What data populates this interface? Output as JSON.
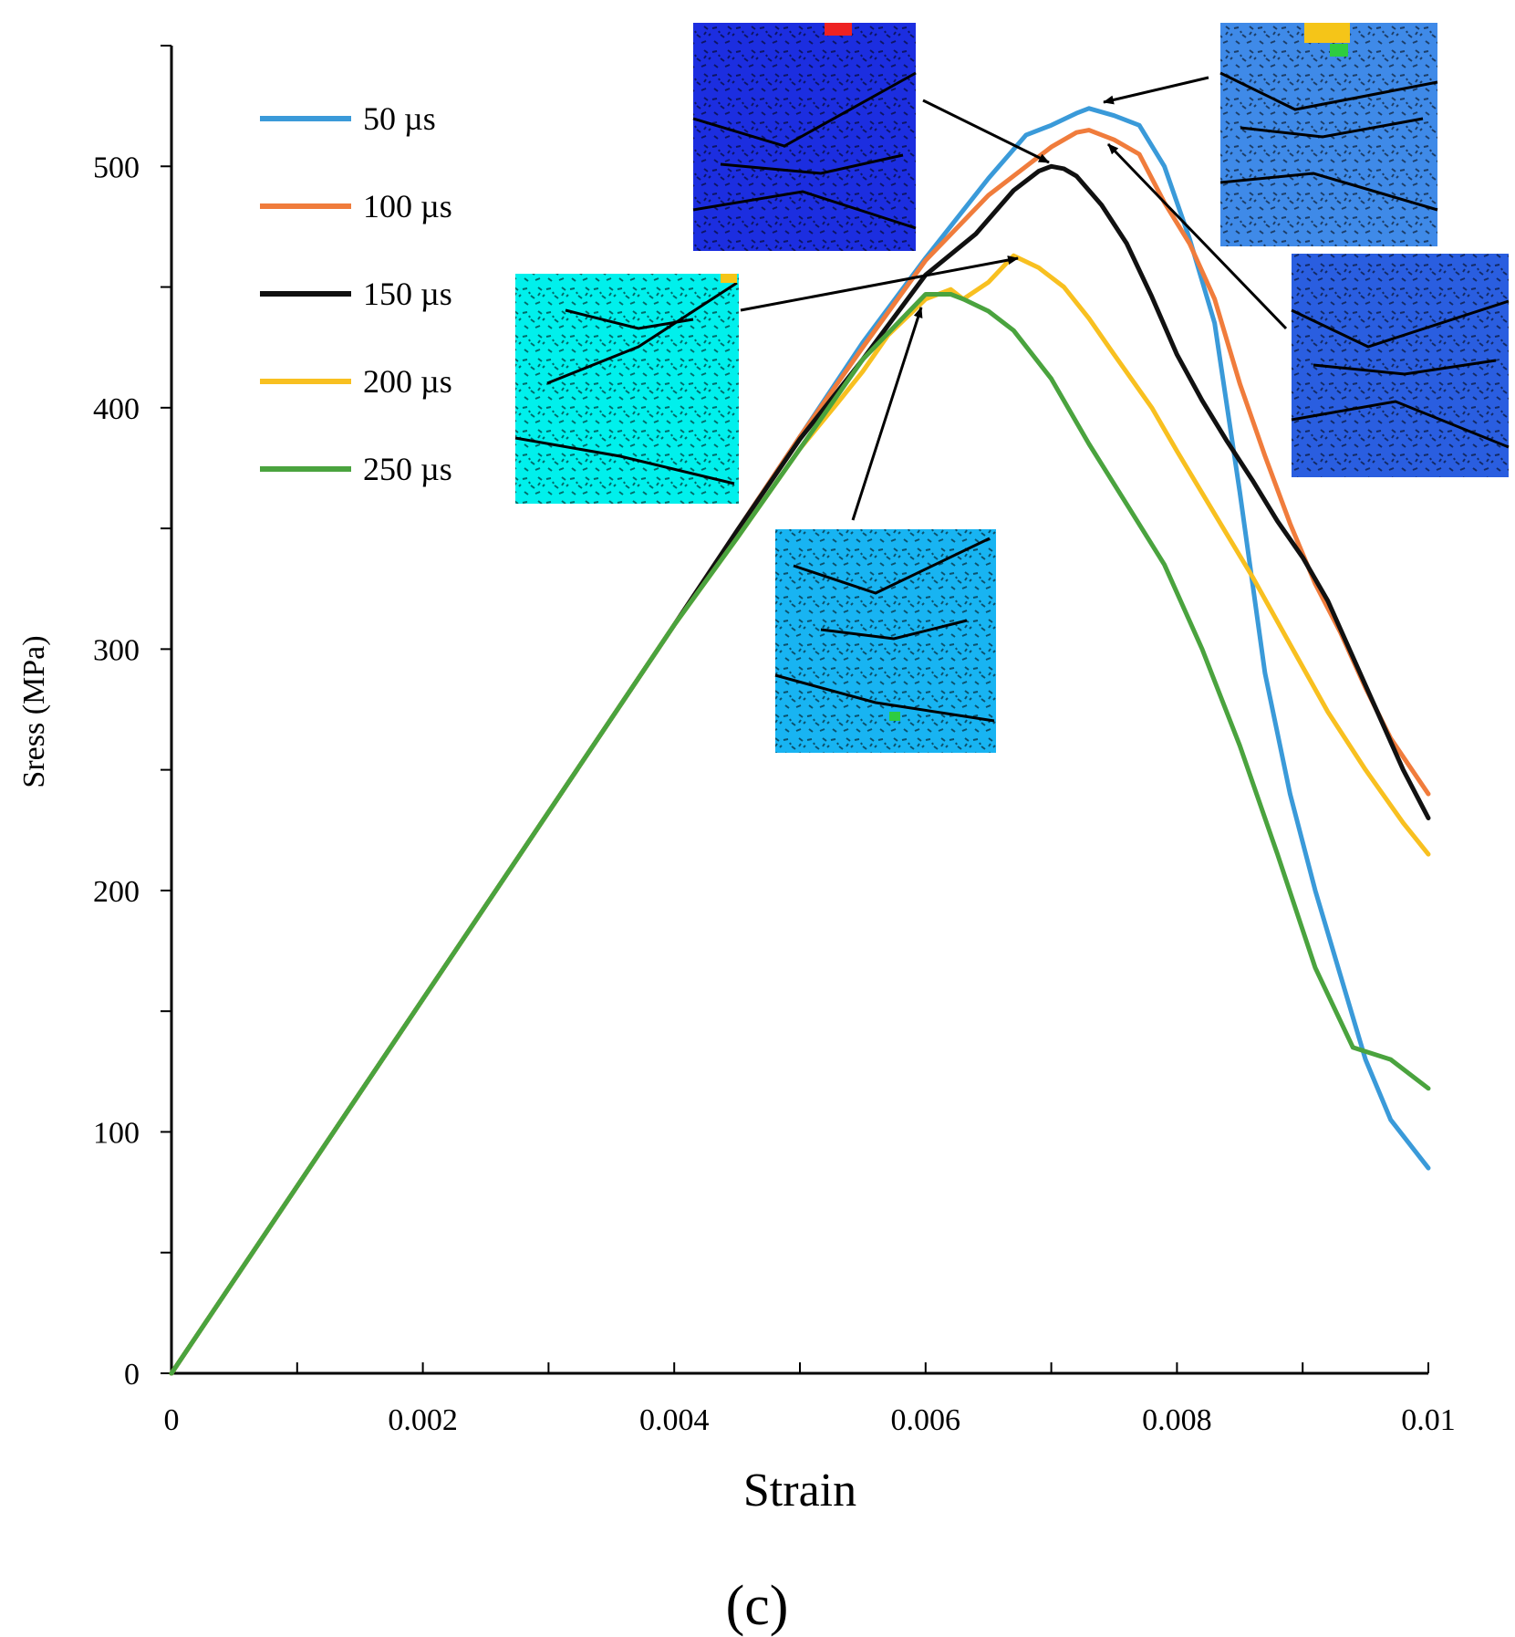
{
  "chart_data": {
    "type": "line",
    "title": "",
    "xlabel": "Strain",
    "ylabel": "Sress (MPa)",
    "panel_label": "(c)",
    "xlim": [
      0,
      0.01
    ],
    "ylim": [
      0,
      550
    ],
    "x_ticks": [
      "0",
      "0.002",
      "0.004",
      "0.006",
      "0.008",
      "0.01"
    ],
    "x_tick_values": [
      0,
      0.002,
      0.004,
      0.006,
      0.008,
      0.01
    ],
    "y_ticks": [
      "0",
      "100",
      "200",
      "300",
      "400",
      "500"
    ],
    "y_tick_values": [
      0,
      100,
      200,
      300,
      400,
      500
    ],
    "grid": false,
    "legend_position": "top-left",
    "series": [
      {
        "name": "50 µs",
        "color": "#3a9ad9",
        "points": [
          [
            0,
            0
          ],
          [
            0.002,
            155
          ],
          [
            0.004,
            310
          ],
          [
            0.0045,
            349
          ],
          [
            0.005,
            388
          ],
          [
            0.0055,
            427
          ],
          [
            0.006,
            462
          ],
          [
            0.0065,
            495
          ],
          [
            0.0068,
            513
          ],
          [
            0.007,
            517
          ],
          [
            0.0072,
            522
          ],
          [
            0.0073,
            524
          ],
          [
            0.0075,
            521
          ],
          [
            0.0077,
            517
          ],
          [
            0.0079,
            500
          ],
          [
            0.0081,
            470
          ],
          [
            0.0083,
            435
          ],
          [
            0.0085,
            365
          ],
          [
            0.0087,
            290
          ],
          [
            0.0089,
            240
          ],
          [
            0.0091,
            200
          ],
          [
            0.0093,
            165
          ],
          [
            0.0095,
            130
          ],
          [
            0.0097,
            105
          ],
          [
            0.01,
            85
          ]
        ]
      },
      {
        "name": "100 µs",
        "color": "#f07c3c",
        "points": [
          [
            0,
            0
          ],
          [
            0.002,
            155
          ],
          [
            0.004,
            310
          ],
          [
            0.0045,
            349
          ],
          [
            0.005,
            388
          ],
          [
            0.0055,
            425
          ],
          [
            0.006,
            461
          ],
          [
            0.0065,
            488
          ],
          [
            0.0068,
            500
          ],
          [
            0.007,
            508
          ],
          [
            0.0072,
            514
          ],
          [
            0.0073,
            515
          ],
          [
            0.0075,
            511
          ],
          [
            0.0077,
            505
          ],
          [
            0.0079,
            485
          ],
          [
            0.0081,
            468
          ],
          [
            0.0083,
            445
          ],
          [
            0.0085,
            410
          ],
          [
            0.0087,
            380
          ],
          [
            0.0089,
            352
          ],
          [
            0.0091,
            327
          ],
          [
            0.0093,
            307
          ],
          [
            0.0095,
            284
          ],
          [
            0.0097,
            263
          ],
          [
            0.01,
            240
          ]
        ]
      },
      {
        "name": "150 µs",
        "color": "#111111",
        "points": [
          [
            0,
            0
          ],
          [
            0.002,
            155
          ],
          [
            0.004,
            310
          ],
          [
            0.0045,
            349
          ],
          [
            0.005,
            387
          ],
          [
            0.0055,
            420
          ],
          [
            0.006,
            455
          ],
          [
            0.0064,
            472
          ],
          [
            0.0067,
            490
          ],
          [
            0.0069,
            498
          ],
          [
            0.007,
            500
          ],
          [
            0.0071,
            499
          ],
          [
            0.0072,
            496
          ],
          [
            0.0074,
            484
          ],
          [
            0.0076,
            468
          ],
          [
            0.0078,
            446
          ],
          [
            0.008,
            422
          ],
          [
            0.0082,
            403
          ],
          [
            0.0084,
            386
          ],
          [
            0.0086,
            370
          ],
          [
            0.0088,
            353
          ],
          [
            0.009,
            338
          ],
          [
            0.0092,
            320
          ],
          [
            0.0095,
            285
          ],
          [
            0.0098,
            250
          ],
          [
            0.01,
            230
          ]
        ]
      },
      {
        "name": "200 µs",
        "color": "#f8c020",
        "points": [
          [
            0,
            0
          ],
          [
            0.002,
            155
          ],
          [
            0.004,
            310
          ],
          [
            0.0045,
            346
          ],
          [
            0.005,
            383
          ],
          [
            0.0053,
            402
          ],
          [
            0.0055,
            415
          ],
          [
            0.0057,
            430
          ],
          [
            0.006,
            445
          ],
          [
            0.0062,
            449
          ],
          [
            0.0063,
            445
          ],
          [
            0.0065,
            452
          ],
          [
            0.0067,
            463
          ],
          [
            0.0069,
            458
          ],
          [
            0.0071,
            450
          ],
          [
            0.0073,
            437
          ],
          [
            0.0075,
            422
          ],
          [
            0.0078,
            400
          ],
          [
            0.008,
            382
          ],
          [
            0.0083,
            356
          ],
          [
            0.0086,
            330
          ],
          [
            0.0089,
            302
          ],
          [
            0.0092,
            274
          ],
          [
            0.0095,
            250
          ],
          [
            0.0098,
            228
          ],
          [
            0.01,
            215
          ]
        ]
      },
      {
        "name": "250 µs",
        "color": "#4aa33e",
        "points": [
          [
            0,
            0
          ],
          [
            0.002,
            155
          ],
          [
            0.004,
            310
          ],
          [
            0.0045,
            346
          ],
          [
            0.005,
            383
          ],
          [
            0.0055,
            420
          ],
          [
            0.006,
            447
          ],
          [
            0.0062,
            447
          ],
          [
            0.0063,
            445
          ],
          [
            0.0065,
            440
          ],
          [
            0.0067,
            432
          ],
          [
            0.007,
            412
          ],
          [
            0.0073,
            385
          ],
          [
            0.0076,
            360
          ],
          [
            0.0079,
            335
          ],
          [
            0.0082,
            300
          ],
          [
            0.0085,
            260
          ],
          [
            0.0088,
            215
          ],
          [
            0.0091,
            168
          ],
          [
            0.0094,
            135
          ],
          [
            0.0097,
            130
          ],
          [
            0.01,
            118
          ]
        ]
      }
    ]
  }
}
